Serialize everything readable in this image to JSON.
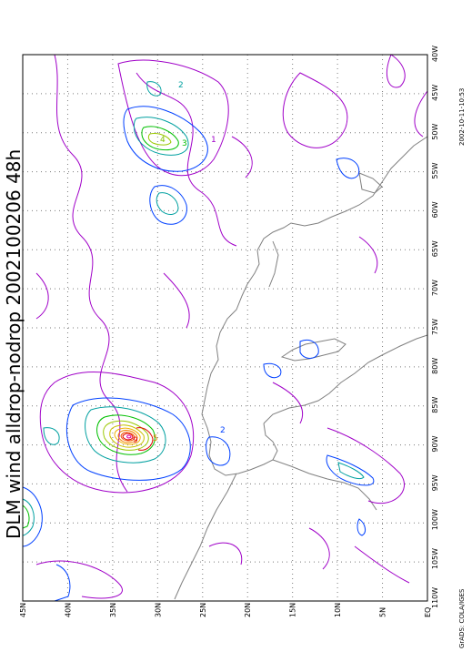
{
  "title": "DLM wind alldrop-nodrop  2002100206  48h",
  "footer_left": "GrADS: COLA/IGES",
  "footer_right": "2002-10-11-10:53",
  "lon_labels": [
    "40W",
    "45W",
    "50W",
    "55W",
    "60W",
    "65W",
    "70W",
    "75W",
    "80W",
    "85W",
    "90W",
    "95W",
    "100W",
    "105W",
    "110W"
  ],
  "lat_labels": [
    "45N",
    "40N",
    "35N",
    "30N",
    "25N",
    "20N",
    "15N",
    "10N",
    "5N",
    "EQ"
  ],
  "contour_labels": [
    {
      "text": "2",
      "color": "#00a0a0"
    },
    {
      "text": "3",
      "color": "#00c000"
    },
    {
      "text": "4",
      "color": "#80c000"
    },
    {
      "text": "1",
      "color": "#a000c8"
    },
    {
      "text": "2",
      "color": "#0040ff"
    },
    {
      "text": "5",
      "color": "#e08000"
    },
    {
      "text": "9",
      "color": "#e00000"
    }
  ],
  "colors": {
    "purple": "#a000c8",
    "blue": "#0040ff",
    "cyan": "#00a0a0",
    "green": "#00c000",
    "yellowgreen": "#9ac800",
    "orange": "#f08000",
    "red": "#e00000",
    "magenta": "#e000a0",
    "coast": "#808080",
    "grid": "#7a7a7a"
  }
}
